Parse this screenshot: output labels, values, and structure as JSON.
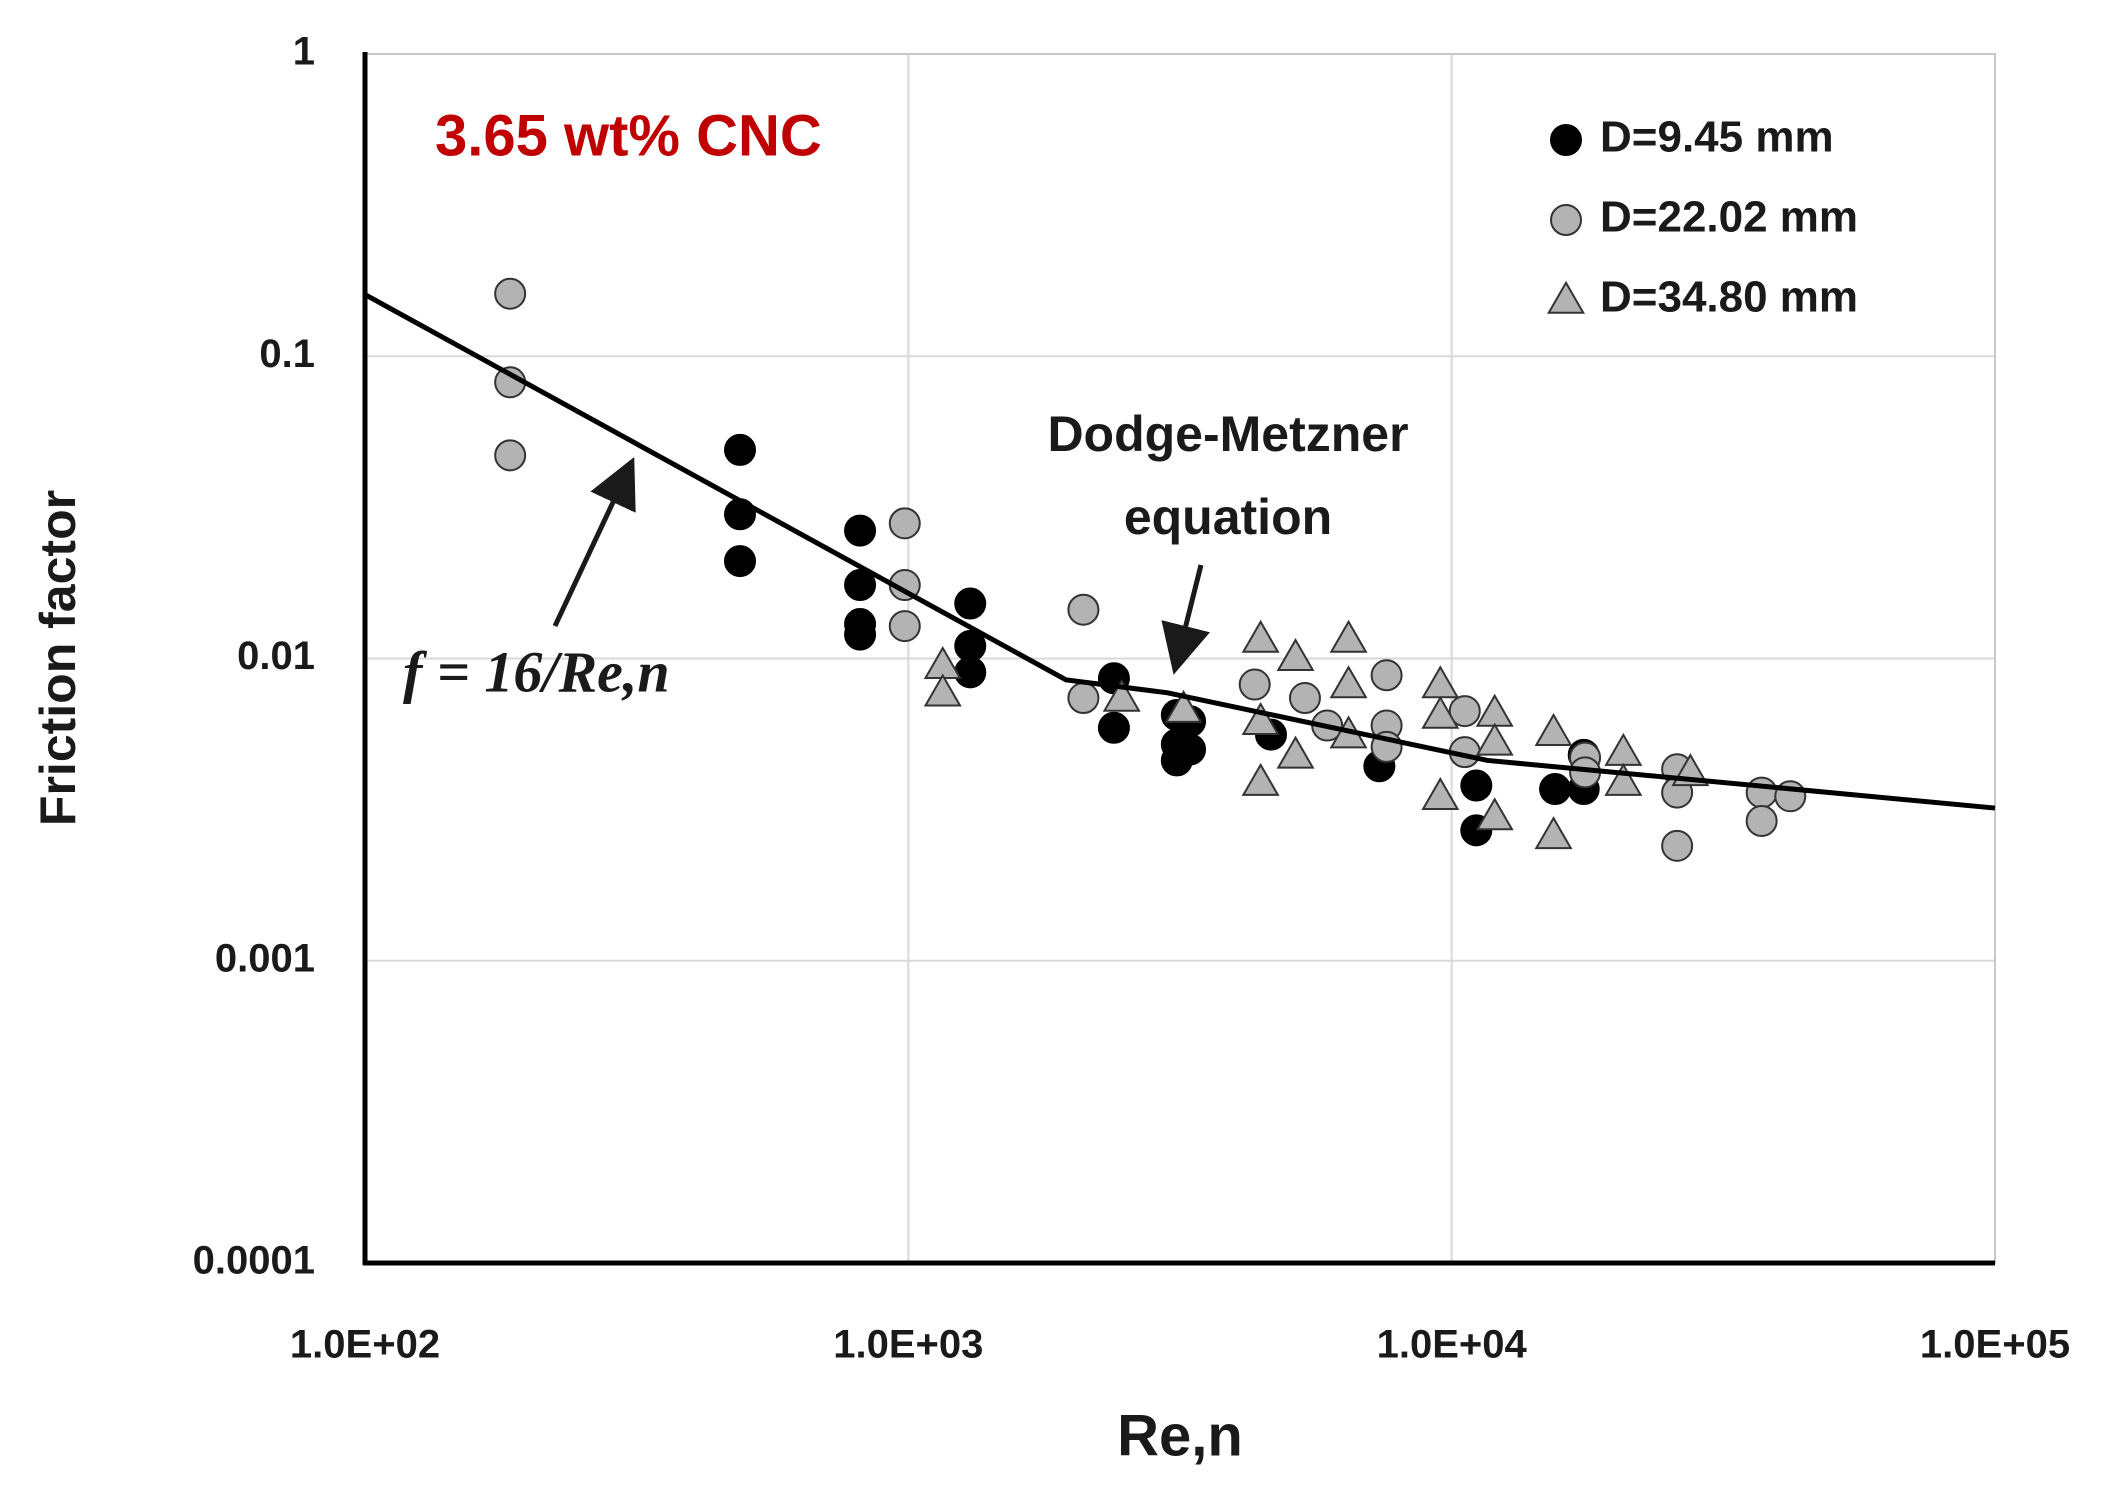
{
  "chart_data": {
    "type": "scatter",
    "xlabel": "Re,n",
    "ylabel": "Friction factor",
    "annotations": [
      {
        "text": "3.65 wt% CNC",
        "color": "#c00000"
      },
      {
        "text": [
          "Dodge-Metzner",
          "equation"
        ],
        "color": "#1a1a1a"
      },
      {
        "text": "f = 16/Re,n",
        "color": "#1a1a1a"
      }
    ],
    "xscale": "log",
    "yscale": "log",
    "xlim": [
      100,
      100000
    ],
    "ylim": [
      0.0001,
      1
    ],
    "xticks": [
      {
        "value": 100,
        "label": "1.0E+02"
      },
      {
        "value": 1000,
        "label": "1.0E+03"
      },
      {
        "value": 10000,
        "label": "1.0E+04"
      },
      {
        "value": 100000,
        "label": "1.0E+05"
      }
    ],
    "yticks": [
      1,
      0.1,
      0.01,
      0.001,
      0.0001
    ],
    "grid": true,
    "legend": "upper right",
    "series": [
      {
        "name": "D=9.45 mm",
        "type": "scatter",
        "marker": "circle",
        "color": "#000000",
        "edgecolor": "#000000",
        "x": [
          490,
          490,
          490,
          815,
          815,
          815,
          815,
          1300,
          1300,
          1300,
          2390,
          2390,
          3120,
          3120,
          3300,
          3300,
          3120,
          4650,
          7360,
          11100,
          11100,
          15500,
          17500,
          17500
        ],
        "values": [
          0.049,
          0.03,
          0.021,
          0.0265,
          0.0175,
          0.013,
          0.012,
          0.0152,
          0.011,
          0.009,
          0.0086,
          0.0059,
          0.0065,
          0.0046,
          0.0062,
          0.005,
          0.0052,
          0.0056,
          0.0044,
          0.0038,
          0.0027,
          0.0037,
          0.0037,
          0.0048
        ]
      },
      {
        "name": "D=22.02 mm",
        "type": "scatter",
        "marker": "circle",
        "color": "#b3b3b3",
        "edgecolor": "#333333",
        "x": [
          185,
          185,
          185,
          985,
          985,
          985,
          2100,
          2100,
          4340,
          5370,
          5900,
          7590,
          7590,
          7590,
          10570,
          10570,
          17600,
          17600,
          26000,
          26000,
          26000,
          37200,
          37200,
          42000
        ],
        "values": [
          0.161,
          0.082,
          0.047,
          0.028,
          0.0175,
          0.0128,
          0.0145,
          0.0074,
          0.0082,
          0.0074,
          0.006,
          0.0088,
          0.006,
          0.0051,
          0.0067,
          0.0049,
          0.0047,
          0.0042,
          0.0043,
          0.0024,
          0.0036,
          0.0036,
          0.0029,
          0.0035
        ]
      },
      {
        "name": "D=34.80 mm",
        "type": "scatter",
        "marker": "triangle",
        "color": "#b3b3b3",
        "edgecolor": "#333333",
        "x": [
          1157,
          1157,
          2470,
          3210,
          4450,
          4450,
          4450,
          5160,
          5160,
          6460,
          6460,
          6460,
          9530,
          9530,
          9530,
          12000,
          12000,
          12000,
          15400,
          15400,
          20700,
          20700,
          27500
        ],
        "values": [
          0.0095,
          0.0077,
          0.0074,
          0.0068,
          0.0116,
          0.0062,
          0.0039,
          0.0101,
          0.0048,
          0.0116,
          0.0082,
          0.0056,
          0.0082,
          0.0065,
          0.0035,
          0.0066,
          0.0053,
          0.003,
          0.0057,
          0.0026,
          0.0049,
          0.0039,
          0.0042
        ]
      },
      {
        "type": "line",
        "color": "#000000",
        "x": [
          100,
          1950,
          3000,
          11650,
          100000
        ],
        "values": [
          0.16,
          0.0085,
          0.0077,
          0.0046,
          0.0032
        ]
      }
    ]
  }
}
